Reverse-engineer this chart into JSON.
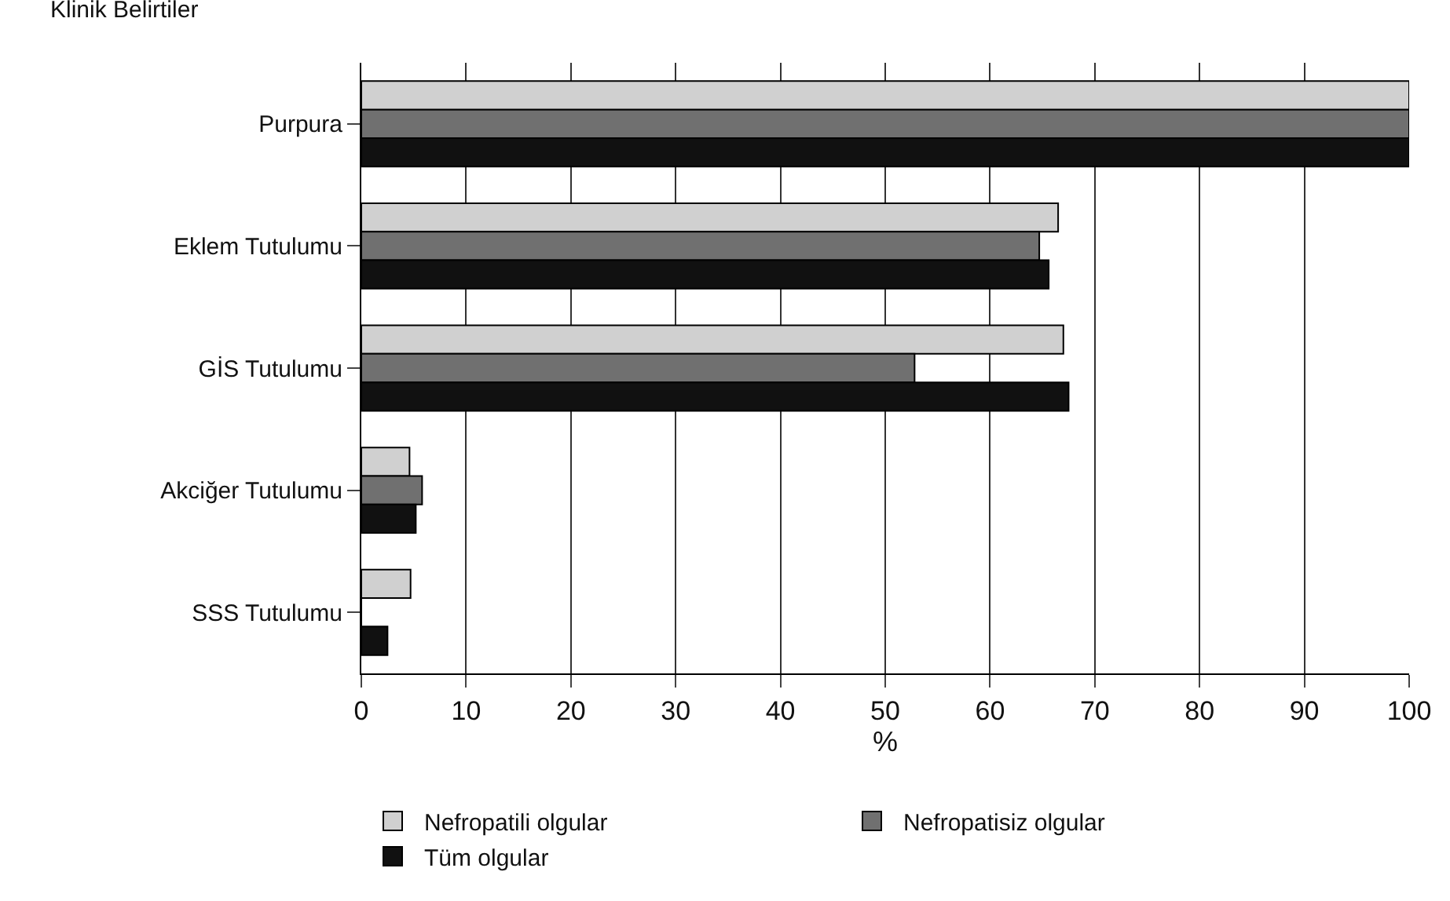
{
  "chart_data": {
    "type": "bar",
    "orientation": "horizontal",
    "ylabel": "Klinik Belirtiler",
    "xlabel": "%",
    "categories": [
      "Purpura",
      "Eklem Tutulumu",
      "GİS Tutulumu",
      "Akciğer Tutulumu",
      "SSS Tutulumu"
    ],
    "series": [
      {
        "name": "Nefropatili olgular",
        "color": "#d0d0d0",
        "values": [
          100,
          66.5,
          67,
          4.6,
          4.7
        ]
      },
      {
        "name": "Nefropatisiz olgular",
        "color": "#707070",
        "values": [
          100,
          64.7,
          52.8,
          5.8,
          0
        ]
      },
      {
        "name": "Tüm olgular",
        "color": "#111111",
        "values": [
          100,
          65.6,
          67.5,
          5.2,
          2.5
        ]
      }
    ],
    "xlim": [
      0,
      100
    ],
    "xticks": [
      0,
      10,
      20,
      30,
      40,
      50,
      60,
      70,
      80,
      90,
      100
    ],
    "grid": "x",
    "legend": "bottom"
  }
}
